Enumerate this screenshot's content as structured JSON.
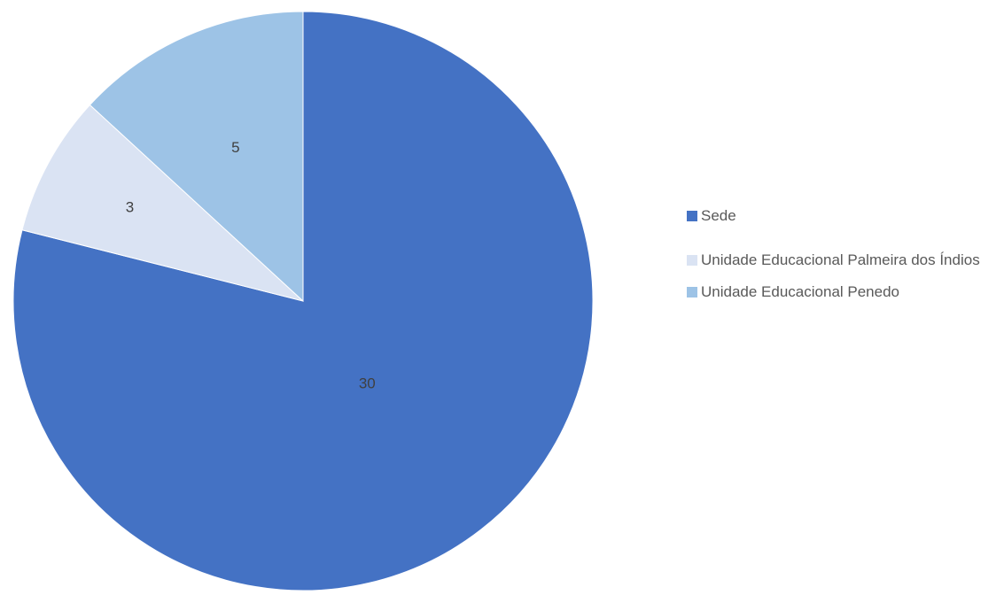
{
  "chart_data": {
    "type": "pie",
    "title": "",
    "categories": [
      "Sede",
      "Unidade Educacional Palmeira dos Índios",
      "Unidade Educacional Penedo"
    ],
    "values": [
      30,
      3,
      5
    ],
    "data_labels": [
      "30",
      "3",
      "5"
    ],
    "colors": [
      "#4472C4",
      "#DAE3F3",
      "#9DC3E6"
    ],
    "start": "12 o'clock",
    "direction": "clockwise",
    "legend_position": "right"
  }
}
